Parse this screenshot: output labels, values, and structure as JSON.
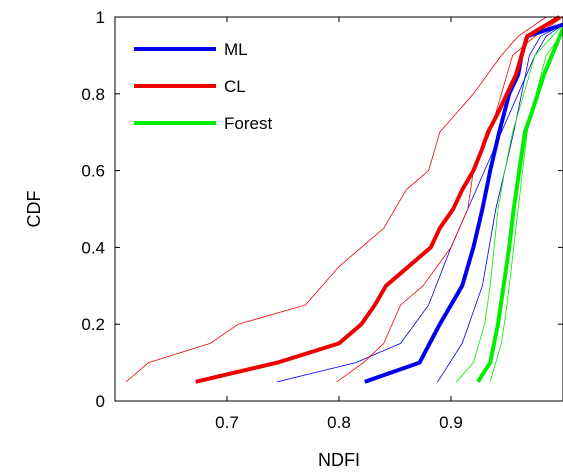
{
  "chart_data": {
    "type": "line",
    "xlabel": "NDFI",
    "ylabel": "CDF",
    "xlim": [
      0.6,
      1.0
    ],
    "ylim": [
      0,
      1
    ],
    "x_ticks": [
      0.7,
      0.8,
      0.9
    ],
    "x_tick_labels": [
      "0.7",
      "0.8",
      "0.9"
    ],
    "y_ticks": [
      0,
      0.2,
      0.4,
      0.6,
      0.8,
      1
    ],
    "y_tick_labels": [
      "0",
      "0.2",
      "0.4",
      "0.6",
      "0.8",
      "1"
    ],
    "grid": false,
    "legend_position": "top-left",
    "series": [
      {
        "name": "ML",
        "color": "#0000ee",
        "role": "main",
        "points": [
          [
            0.823,
            0.05
          ],
          [
            0.872,
            0.1
          ],
          [
            0.89,
            0.2
          ],
          [
            0.91,
            0.3
          ],
          [
            0.92,
            0.4
          ],
          [
            0.928,
            0.5
          ],
          [
            0.935,
            0.6
          ],
          [
            0.943,
            0.7
          ],
          [
            0.952,
            0.8
          ],
          [
            0.96,
            0.85
          ],
          [
            0.963,
            0.9
          ],
          [
            0.968,
            0.95
          ],
          [
            1.0,
            0.98
          ]
        ]
      },
      {
        "name": "CL",
        "color": "#ee0000",
        "role": "main",
        "points": [
          [
            0.672,
            0.05
          ],
          [
            0.745,
            0.1
          ],
          [
            0.8,
            0.15
          ],
          [
            0.82,
            0.2
          ],
          [
            0.832,
            0.25
          ],
          [
            0.842,
            0.3
          ],
          [
            0.862,
            0.35
          ],
          [
            0.882,
            0.4
          ],
          [
            0.89,
            0.45
          ],
          [
            0.902,
            0.5
          ],
          [
            0.91,
            0.55
          ],
          [
            0.92,
            0.6
          ],
          [
            0.927,
            0.65
          ],
          [
            0.933,
            0.7
          ],
          [
            0.942,
            0.75
          ],
          [
            0.95,
            0.8
          ],
          [
            0.958,
            0.85
          ],
          [
            0.963,
            0.9
          ],
          [
            0.968,
            0.95
          ],
          [
            0.997,
            1.0
          ]
        ]
      },
      {
        "name": "Forest",
        "color": "#00ee00",
        "role": "main",
        "points": [
          [
            0.924,
            0.05
          ],
          [
            0.935,
            0.1
          ],
          [
            0.942,
            0.2
          ],
          [
            0.947,
            0.3
          ],
          [
            0.952,
            0.4
          ],
          [
            0.956,
            0.5
          ],
          [
            0.961,
            0.6
          ],
          [
            0.966,
            0.7
          ],
          [
            0.972,
            0.75
          ],
          [
            0.983,
            0.85
          ],
          [
            1.0,
            0.97
          ]
        ]
      },
      {
        "color": "#0000ee",
        "role": "bound",
        "points": [
          [
            0.745,
            0.05
          ],
          [
            0.815,
            0.1
          ],
          [
            0.855,
            0.15
          ],
          [
            0.88,
            0.25
          ],
          [
            0.9,
            0.4
          ],
          [
            0.915,
            0.5
          ],
          [
            0.93,
            0.6
          ],
          [
            0.945,
            0.7
          ],
          [
            0.96,
            0.8
          ],
          [
            0.975,
            0.9
          ],
          [
            0.985,
            0.95
          ],
          [
            1.0,
            0.98
          ]
        ]
      },
      {
        "color": "#0000ee",
        "role": "bound",
        "points": [
          [
            0.888,
            0.05
          ],
          [
            0.91,
            0.15
          ],
          [
            0.928,
            0.3
          ],
          [
            0.94,
            0.5
          ],
          [
            0.948,
            0.6
          ],
          [
            0.956,
            0.7
          ],
          [
            0.963,
            0.8
          ],
          [
            0.97,
            0.9
          ],
          [
            0.98,
            0.95
          ],
          [
            1.0,
            0.98
          ]
        ]
      },
      {
        "color": "#ee0000",
        "role": "bound",
        "points": [
          [
            0.61,
            0.05
          ],
          [
            0.63,
            0.1
          ],
          [
            0.685,
            0.15
          ],
          [
            0.71,
            0.2
          ],
          [
            0.77,
            0.25
          ],
          [
            0.8,
            0.35
          ],
          [
            0.82,
            0.4
          ],
          [
            0.84,
            0.45
          ],
          [
            0.86,
            0.55
          ],
          [
            0.88,
            0.6
          ],
          [
            0.89,
            0.7
          ],
          [
            0.905,
            0.75
          ],
          [
            0.92,
            0.8
          ],
          [
            0.945,
            0.9
          ],
          [
            0.96,
            0.95
          ],
          [
            0.985,
            1.0
          ]
        ]
      },
      {
        "color": "#ee0000",
        "role": "bound",
        "points": [
          [
            0.798,
            0.05
          ],
          [
            0.822,
            0.1
          ],
          [
            0.84,
            0.15
          ],
          [
            0.855,
            0.25
          ],
          [
            0.875,
            0.3
          ],
          [
            0.9,
            0.4
          ],
          [
            0.915,
            0.5
          ],
          [
            0.92,
            0.6
          ],
          [
            0.935,
            0.7
          ],
          [
            0.945,
            0.8
          ],
          [
            0.955,
            0.9
          ],
          [
            0.975,
            0.95
          ],
          [
            1.0,
            1.0
          ]
        ]
      },
      {
        "color": "#00ee00",
        "role": "bound",
        "points": [
          [
            0.905,
            0.05
          ],
          [
            0.92,
            0.1
          ],
          [
            0.93,
            0.2
          ],
          [
            0.935,
            0.3
          ],
          [
            0.942,
            0.5
          ],
          [
            0.948,
            0.6
          ],
          [
            0.955,
            0.7
          ],
          [
            0.965,
            0.8
          ],
          [
            0.975,
            0.9
          ],
          [
            1.0,
            0.98
          ]
        ]
      },
      {
        "color": "#00ee00",
        "role": "bound",
        "points": [
          [
            0.935,
            0.05
          ],
          [
            0.945,
            0.15
          ],
          [
            0.95,
            0.25
          ],
          [
            0.956,
            0.4
          ],
          [
            0.962,
            0.55
          ],
          [
            0.968,
            0.7
          ],
          [
            0.976,
            0.8
          ],
          [
            0.985,
            0.9
          ],
          [
            1.0,
            0.96
          ]
        ]
      }
    ]
  }
}
